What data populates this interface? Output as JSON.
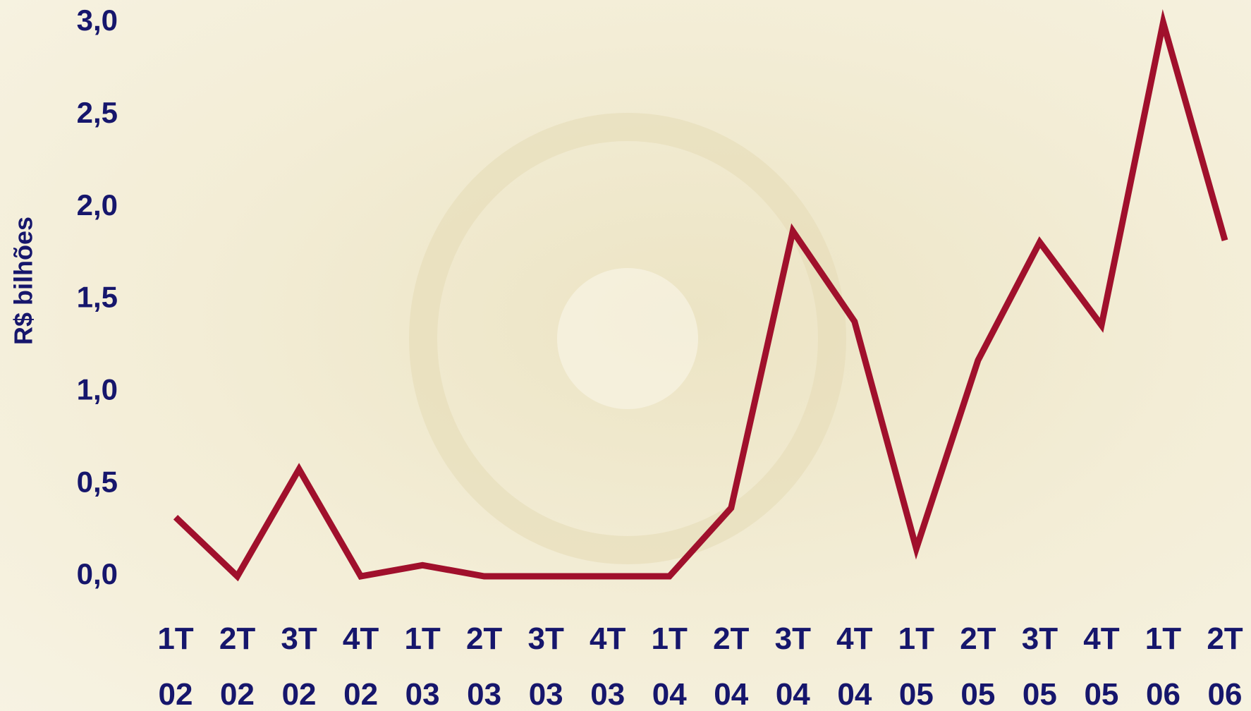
{
  "chart_data": {
    "type": "line",
    "y_label": "R$ bilhões",
    "categories": [
      "1T 02",
      "2T 02",
      "3T 02",
      "4T 02",
      "1T 03",
      "2T 03",
      "3T 03",
      "4T 03",
      "1T 04",
      "2T 04",
      "3T 04",
      "4T 04",
      "1T 05",
      "2T 05",
      "3T 05",
      "4T 05",
      "1T 06",
      "2T 06"
    ],
    "values": [
      0.32,
      0.0,
      0.58,
      0.0,
      0.06,
      0.0,
      0.0,
      0.0,
      0.0,
      0.37,
      1.87,
      1.38,
      0.15,
      1.17,
      1.81,
      1.36,
      3.0,
      1.82
    ],
    "color": "#a0102c",
    "ylim": [
      0,
      3.0
    ],
    "yticks": [
      {
        "value": 0,
        "label": "0,0"
      },
      {
        "value": 0.5,
        "label": "0,5"
      },
      {
        "value": 1.0,
        "label": "1,0"
      },
      {
        "value": 1.5,
        "label": "1,5"
      },
      {
        "value": 2.0,
        "label": "2,0"
      },
      {
        "value": 2.5,
        "label": "2,5"
      },
      {
        "value": 3.0,
        "label": "3,0"
      }
    ],
    "grid": false
  }
}
